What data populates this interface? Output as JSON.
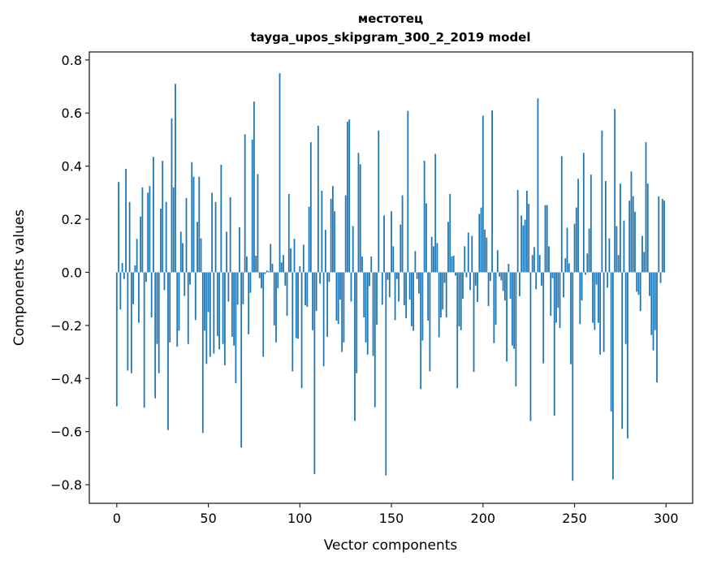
{
  "chart_data": {
    "type": "bar",
    "title": "местотец",
    "subtitle": "tayga_upos_skipgram_300_2_2019 model",
    "xlabel": "Vector components",
    "ylabel": "Components values",
    "xlim": [
      -15,
      314.5
    ],
    "ylim": [
      -0.87,
      0.83
    ],
    "grid": false,
    "bar_color": "#1f77b4",
    "xticks": [
      0,
      50,
      100,
      150,
      200,
      250,
      300
    ],
    "xtick_labels": [
      "0",
      "50",
      "100",
      "150",
      "200",
      "250",
      "300"
    ],
    "yticks": [
      0.8,
      0.6,
      0.4,
      0.2,
      0.0,
      -0.2,
      -0.4,
      -0.6,
      -0.8
    ],
    "ytick_labels": [
      "0.8",
      "0.6",
      "0.4",
      "0.2",
      "0.0",
      "−0.2",
      "−0.4",
      "−0.6",
      "−0.8"
    ],
    "values": [
      -0.505,
      0.34,
      -0.14,
      0.035,
      -0.025,
      0.39,
      -0.37,
      0.265,
      -0.38,
      -0.12,
      0.026,
      0.126,
      -0.19,
      0.21,
      0.32,
      -0.51,
      -0.036,
      0.3,
      0.325,
      -0.17,
      0.435,
      -0.475,
      -0.27,
      -0.38,
      0.24,
      0.42,
      -0.067,
      0.265,
      -0.594,
      -0.264,
      0.58,
      0.32,
      0.71,
      -0.28,
      -0.22,
      0.153,
      0.11,
      -0.089,
      0.28,
      -0.27,
      -0.046,
      0.415,
      0.36,
      -0.18,
      0.19,
      0.36,
      0.128,
      -0.605,
      -0.22,
      -0.345,
      -0.15,
      -0.318,
      0.3,
      -0.306,
      0.265,
      -0.24,
      -0.29,
      0.405,
      -0.27,
      -0.35,
      0.153,
      -0.11,
      0.283,
      -0.243,
      -0.276,
      -0.418,
      -0.122,
      0.17,
      -0.66,
      -0.12,
      0.52,
      0.06,
      -0.233,
      -0.077,
      0.5,
      0.643,
      0.0625,
      0.37,
      -0.022,
      -0.06,
      -0.318,
      -0.006,
      0.007,
      0.003,
      0.107,
      0.032,
      -0.2,
      -0.264,
      -0.06,
      0.75,
      0.0375,
      0.065,
      -0.05,
      -0.164,
      0.295,
      0.09,
      -0.373,
      0.126,
      -0.248,
      -0.25,
      0.023,
      -0.436,
      0.104,
      -0.124,
      -0.13,
      0.247,
      0.49,
      -0.218,
      -0.76,
      -0.146,
      0.552,
      -0.043,
      0.307,
      -0.354,
      0.16,
      -0.243,
      -0.036,
      0.277,
      0.325,
      0.23,
      -0.182,
      -0.195,
      -0.103,
      -0.3,
      -0.264,
      0.29,
      0.568,
      0.576,
      -0.11,
      0.174,
      -0.56,
      -0.38,
      0.45,
      0.407,
      0.06,
      -0.17,
      -0.264,
      -0.31,
      -0.052,
      0.06,
      -0.315,
      -0.508,
      -0.197,
      0.534,
      0.0,
      -0.122,
      0.214,
      -0.765,
      -0.028,
      -0.094,
      0.23,
      0.098,
      -0.18,
      -0.025,
      -0.11,
      0.18,
      0.29,
      -0.124,
      -0.173,
      0.608,
      -0.103,
      -0.203,
      -0.22,
      0.08,
      -0.025,
      -0.08,
      -0.44,
      -0.257,
      0.42,
      0.26,
      -0.182,
      -0.373,
      0.134,
      0.098,
      0.446,
      0.11,
      -0.245,
      -0.17,
      -0.14,
      -0.04,
      -0.17,
      0.19,
      0.295,
      0.06,
      0.0625,
      -0.0125,
      -0.436,
      -0.203,
      -0.218,
      -0.1,
      0.098,
      -0.019,
      0.15,
      -0.067,
      0.1375,
      -0.375,
      -0.05,
      -0.112,
      0.22,
      0.244,
      0.59,
      0.161,
      0.131,
      -0.127,
      -0.033,
      0.61,
      -0.267,
      -0.197,
      0.083,
      -0.016,
      -0.03,
      -0.07,
      -0.106,
      -0.336,
      0.032,
      -0.1,
      -0.276,
      -0.288,
      -0.43,
      0.31,
      -0.09,
      0.214,
      0.177,
      0.198,
      0.307,
      0.258,
      -0.56,
      0.065,
      0.095,
      -0.064,
      0.655,
      0.065,
      -0.05,
      -0.343,
      0.253,
      0.253,
      0.098,
      -0.164,
      -0.022,
      -0.54,
      -0.19,
      -0.133,
      -0.21,
      0.4375,
      -0.094,
      0.053,
      0.168,
      0.034,
      -0.346,
      -0.785,
      0.183,
      0.244,
      0.352,
      -0.195,
      -0.106,
      0.45,
      -0.009,
      0.071,
      0.165,
      0.368,
      -0.19,
      -0.217,
      -0.046,
      -0.19,
      -0.31,
      0.534,
      -0.3,
      0.344,
      -0.058,
      0.128,
      -0.524,
      -0.78,
      0.615,
      0.174,
      0.065,
      0.334,
      -0.59,
      0.195,
      -0.27,
      -0.626,
      0.27,
      0.38,
      0.287,
      0.228,
      -0.073,
      -0.085,
      -0.146,
      0.1375,
      0.077,
      0.49,
      0.334,
      -0.089,
      -0.236,
      -0.294,
      -0.218,
      -0.415,
      0.286,
      -0.04,
      0.277,
      0.27
    ]
  }
}
